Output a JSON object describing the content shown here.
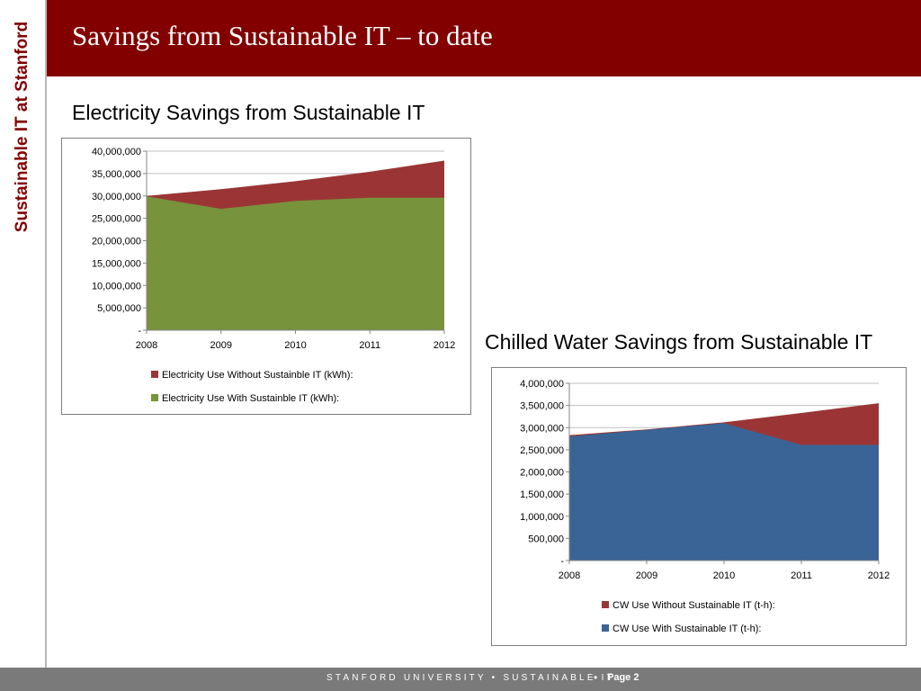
{
  "slide": {
    "title": "Savings from Sustainable IT – to date",
    "side_label": "Sustainable IT at Stanford",
    "footer_text": "STANFORD UNIVERSITY • SUSTAINABLE IT",
    "footer_separator": "•",
    "page_label": "Page 2"
  },
  "colors": {
    "header": "#820000",
    "footer": "#7a7a7a",
    "elec_without": "#9b3535",
    "elec_with": "#77933c",
    "cw_without": "#9b3535",
    "cw_with": "#3a6496"
  },
  "chart_data": [
    {
      "type": "area",
      "title": "Electricity Savings from Sustainable IT",
      "categories": [
        "2008",
        "2009",
        "2010",
        "2011",
        "2012"
      ],
      "series": [
        {
          "name": "Electricity Use Without Sustainble IT (kWh):",
          "values": [
            30000000,
            31500000,
            33300000,
            35400000,
            37900000
          ]
        },
        {
          "name": "Electricity Use With Sustainble IT (kWh):",
          "values": [
            29900000,
            27100000,
            28900000,
            29600000,
            29600000
          ]
        }
      ],
      "ylim": [
        0,
        40000000
      ],
      "yticks": [
        0,
        5000000,
        10000000,
        15000000,
        20000000,
        25000000,
        30000000,
        35000000,
        40000000
      ],
      "ytick_labels": [
        "-",
        "5,000,000",
        "10,000,000",
        "15,000,000",
        "20,000,000",
        "25,000,000",
        "30,000,000",
        "35,000,000",
        "40,000,000"
      ],
      "grid": true,
      "legend": "bottom"
    },
    {
      "type": "area",
      "title": "Chilled Water Savings from Sustainable IT",
      "categories": [
        "2008",
        "2009",
        "2010",
        "2011",
        "2012"
      ],
      "series": [
        {
          "name": "CW Use Without Sustainable IT (t-h):",
          "values": [
            2830000,
            2960000,
            3120000,
            3330000,
            3550000
          ]
        },
        {
          "name": "CW Use With Sustainable IT (t-h):",
          "values": [
            2800000,
            2950000,
            3100000,
            2610000,
            2610000
          ]
        }
      ],
      "ylim": [
        0,
        4000000
      ],
      "yticks": [
        0,
        500000,
        1000000,
        1500000,
        2000000,
        2500000,
        3000000,
        3500000,
        4000000
      ],
      "ytick_labels": [
        "-",
        "500,000",
        "1,000,000",
        "1,500,000",
        "2,000,000",
        "2,500,000",
        "3,000,000",
        "3,500,000",
        "4,000,000"
      ],
      "grid": true,
      "legend": "bottom"
    }
  ]
}
